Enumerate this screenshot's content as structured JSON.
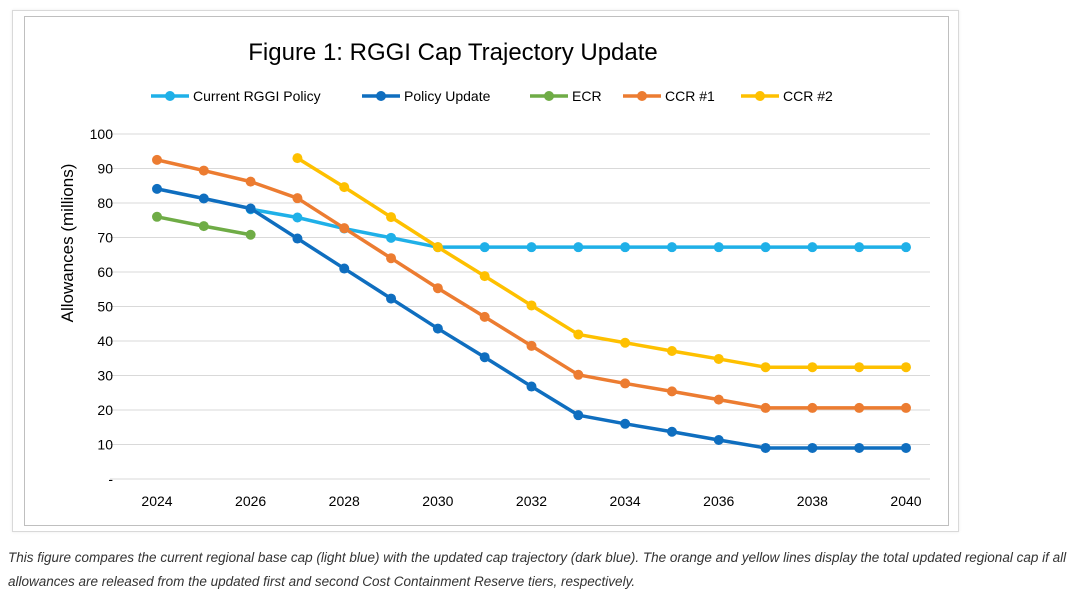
{
  "chart_data": {
    "type": "line",
    "title": "Figure 1: RGGI Cap Trajectory Update",
    "xlabel": "",
    "ylabel": "Allowances (millions)",
    "x": [
      2024,
      2025,
      2026,
      2027,
      2028,
      2029,
      2030,
      2031,
      2032,
      2033,
      2034,
      2035,
      2036,
      2037,
      2038,
      2039,
      2040
    ],
    "xticks": [
      "2024",
      "2026",
      "2028",
      "2030",
      "2032",
      "2034",
      "2036",
      "2038",
      "2040"
    ],
    "yticks": [
      "-",
      "10",
      "20",
      "30",
      "40",
      "50",
      "60",
      "70",
      "80",
      "90",
      "100"
    ],
    "ylim": [
      0,
      100
    ],
    "grid": true,
    "legend_position": "top",
    "series": [
      {
        "name": "Current RGGI Policy",
        "color": "#1fb0e8",
        "values": [
          null,
          null,
          78.2,
          75.8,
          72.6,
          69.9,
          67.2,
          67.2,
          67.2,
          67.2,
          67.2,
          67.2,
          67.2,
          67.2,
          67.2,
          67.2,
          67.2
        ]
      },
      {
        "name": "Policy Update",
        "color": "#0f6ebf",
        "values": [
          84.1,
          81.3,
          78.4,
          69.7,
          61.0,
          52.3,
          43.6,
          35.3,
          26.8,
          18.5,
          16.0,
          13.7,
          11.3,
          9.0,
          9.0,
          9.0,
          9.0
        ]
      },
      {
        "name": "ECR",
        "color": "#6fac46",
        "values": [
          76.0,
          73.3,
          70.8,
          null,
          null,
          null,
          null,
          null,
          null,
          null,
          null,
          null,
          null,
          null,
          null,
          null,
          null
        ]
      },
      {
        "name": "CCR #1",
        "color": "#ec7c31",
        "values": [
          92.5,
          89.4,
          86.2,
          81.4,
          72.7,
          64.0,
          55.3,
          47.0,
          38.6,
          30.2,
          27.7,
          25.4,
          23.0,
          20.6,
          20.6,
          20.6,
          20.6
        ]
      },
      {
        "name": "CCR #2",
        "color": "#fec000",
        "values": [
          null,
          null,
          null,
          93.0,
          84.6,
          75.9,
          67.2,
          58.8,
          50.3,
          41.9,
          39.5,
          37.1,
          34.8,
          32.4,
          32.4,
          32.4,
          32.4
        ]
      }
    ]
  },
  "caption": "This figure compares the current regional base cap (light blue) with the updated cap trajectory (dark blue). The orange and yellow lines display the total updated regional cap if all allowances are released from the updated first and second Cost Containment Reserve tiers, respectively."
}
